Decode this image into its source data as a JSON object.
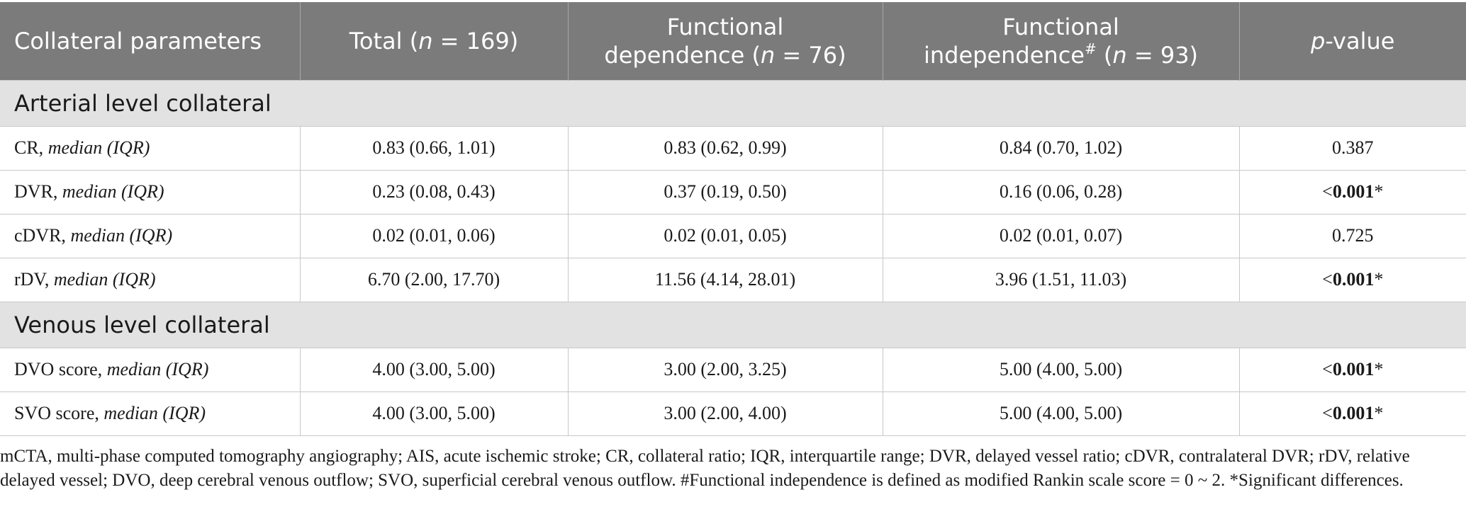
{
  "header": {
    "col1": "Collateral parameters",
    "col2_pre": "Total (",
    "col2_n": "n",
    "col2_post": " = 169)",
    "col3_line1": "Functional",
    "col3_pre": "dependence (",
    "col3_n": "n",
    "col3_post": " = 76)",
    "col4_line1": "Functional",
    "col4_pre": "independence",
    "col4_sup": "#",
    "col4_mid": " (",
    "col4_n": "n",
    "col4_post": " = 93)",
    "col5_p": "p",
    "col5_post": "-value"
  },
  "sections": [
    {
      "title": "Arterial level collateral",
      "rows": [
        {
          "name": "CR, ",
          "stat": "median (IQR)",
          "total": "0.83 (0.66, 1.01)",
          "dep": "0.83 (0.62, 0.99)",
          "indep": "0.84 (0.70, 1.02)",
          "p_prefix": "",
          "p_value": "0.387",
          "p_suffix": ""
        },
        {
          "name": "DVR, ",
          "stat": "median (IQR)",
          "total": "0.23 (0.08, 0.43)",
          "dep": "0.37 (0.19, 0.50)",
          "indep": "0.16 (0.06, 0.28)",
          "p_prefix": "<",
          "p_value": "0.001",
          "p_suffix": "*"
        },
        {
          "name": "cDVR, ",
          "stat": "median (IQR)",
          "total": "0.02 (0.01, 0.06)",
          "dep": "0.02 (0.01, 0.05)",
          "indep": "0.02 (0.01, 0.07)",
          "p_prefix": "",
          "p_value": "0.725",
          "p_suffix": ""
        },
        {
          "name": "rDV, ",
          "stat": "median (IQR)",
          "total": "6.70 (2.00, 17.70)",
          "dep": "11.56 (4.14, 28.01)",
          "indep": "3.96 (1.51, 11.03)",
          "p_prefix": "<",
          "p_value": "0.001",
          "p_suffix": "*"
        }
      ]
    },
    {
      "title": "Venous level collateral",
      "rows": [
        {
          "name": "DVO score, ",
          "stat": "median (IQR)",
          "total": "4.00 (3.00, 5.00)",
          "dep": "3.00 (2.00, 3.25)",
          "indep": "5.00 (4.00, 5.00)",
          "p_prefix": "<",
          "p_value": "0.001",
          "p_suffix": "*"
        },
        {
          "name": "SVO score, ",
          "stat": "median (IQR)",
          "total": "4.00 (3.00, 5.00)",
          "dep": "3.00 (2.00, 4.00)",
          "indep": "5.00 (4.00, 5.00)",
          "p_prefix": "<",
          "p_value": "0.001",
          "p_suffix": "*"
        }
      ]
    }
  ],
  "footnote": "mCTA, multi-phase computed tomography angiography; AIS, acute ischemic stroke; CR, collateral ratio; IQR, interquartile range; DVR, delayed vessel ratio; cDVR, contralateral DVR; rDV, relative delayed vessel; DVO, deep cerebral venous outflow; SVO, superficial cerebral venous outflow. #Functional independence is defined as modified Rankin scale score = 0 ~ 2. *Significant differences.",
  "colors": {
    "header_bg": "#7b7b7b",
    "section_bg": "#e2e2e2",
    "grid": "#c8c8c8"
  }
}
